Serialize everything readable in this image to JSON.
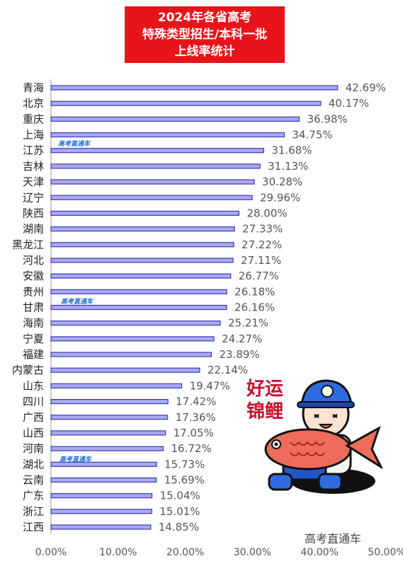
{
  "title": {
    "lines": [
      "2024年各省高考",
      "特殊类型招生/本科一批",
      "上线率统计"
    ]
  },
  "watermark": "高考直通车",
  "brand": "高考直通车",
  "sticker_text": [
    "好运",
    "锦鲤"
  ],
  "colors": {
    "title_bg": "#e8141b",
    "bar_fill": "#a9a9f2",
    "bar_stroke": "#3b3bb3"
  },
  "chart_data": {
    "type": "bar",
    "orientation": "horizontal",
    "categories": [
      "青海",
      "北京",
      "重庆",
      "上海",
      "江苏",
      "吉林",
      "天津",
      "辽宁",
      "陕西",
      "湖南",
      "黑龙江",
      "河北",
      "安徽",
      "贵州",
      "甘肃",
      "海南",
      "宁夏",
      "福建",
      "内蒙古",
      "山东",
      "四川",
      "广西",
      "山西",
      "河南",
      "湖北",
      "云南",
      "广东",
      "浙江",
      "江西"
    ],
    "values": [
      42.69,
      40.17,
      36.98,
      34.75,
      31.68,
      31.13,
      30.28,
      29.96,
      28.0,
      27.33,
      27.22,
      27.11,
      26.77,
      26.18,
      26.16,
      25.21,
      24.27,
      23.89,
      22.14,
      19.47,
      17.42,
      17.36,
      17.05,
      16.72,
      15.73,
      15.69,
      15.04,
      15.01,
      14.85
    ],
    "value_labels": [
      "42.69%",
      "40.17%",
      "36.98%",
      "34.75%",
      "31.68%",
      "31.13%",
      "30.28%",
      "29.96%",
      "28.00%",
      "27.33%",
      "27.22%",
      "27.11%",
      "26.77%",
      "26.18%",
      "26.16%",
      "25.21%",
      "24.27%",
      "23.89%",
      "22.14%",
      "19.47%",
      "17.42%",
      "17.36%",
      "17.05%",
      "16.72%",
      "15.73%",
      "15.69%",
      "15.04%",
      "15.01%",
      "14.85%"
    ],
    "xlim": [
      0,
      50
    ],
    "xticks": [
      0,
      10,
      20,
      30,
      40,
      50
    ],
    "xtick_labels": [
      "0.00%",
      "10.00%",
      "20.00%",
      "30.00%",
      "40.00%",
      "50.00%"
    ],
    "grid": false,
    "legend": "none",
    "title": "2024年各省高考特殊类型招生/本科一批上线率统计",
    "xlabel": "",
    "ylabel": ""
  }
}
